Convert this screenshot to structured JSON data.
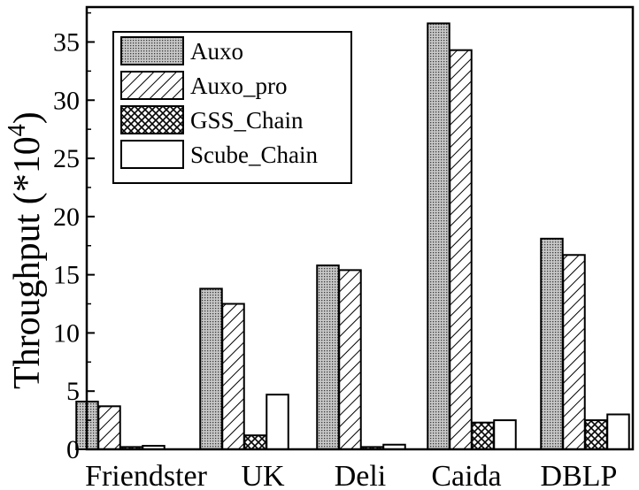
{
  "chart_data": {
    "type": "bar",
    "title": "",
    "xlabel": "",
    "ylabel": "Throughput (*10",
    "ylabel_sup": "4",
    "ylabel_close": ")",
    "categories": [
      "Friendster",
      "UK",
      "Deli",
      "Caida",
      "DBLP"
    ],
    "series": [
      {
        "name": "Auxo",
        "pattern": "dots",
        "values": [
          4.1,
          13.8,
          15.8,
          36.6,
          18.1
        ]
      },
      {
        "name": "Auxo_pro",
        "pattern": "diagonal",
        "values": [
          3.7,
          12.5,
          15.4,
          34.3,
          16.7
        ]
      },
      {
        "name": "GSS_Chain",
        "pattern": "crosshatch",
        "values": [
          0.2,
          1.2,
          0.2,
          2.3,
          2.5
        ]
      },
      {
        "name": "Scube_Chain",
        "pattern": "plain",
        "values": [
          0.3,
          4.7,
          0.4,
          2.5,
          3.0
        ]
      }
    ],
    "ylim": [
      0,
      38
    ],
    "yticks": [
      0,
      5,
      10,
      15,
      20,
      25,
      30,
      35
    ],
    "grid": false,
    "legend_position": "top-left",
    "colors": {
      "dots_bg": "#c8c8c8",
      "stroke": "#000000",
      "background": "#ffffff"
    }
  }
}
